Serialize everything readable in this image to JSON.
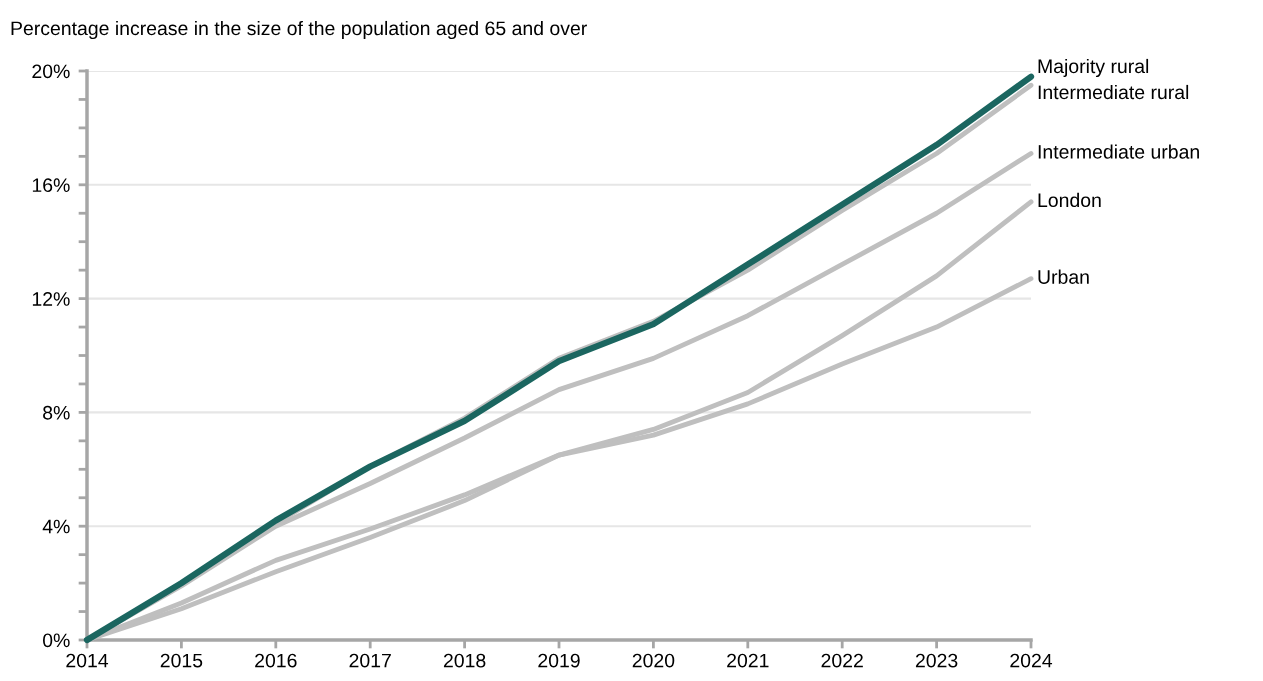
{
  "chart_data": {
    "type": "line",
    "title": "Percentage increase in the size of the population aged 65 and over",
    "x": [
      2014,
      2015,
      2016,
      2017,
      2018,
      2019,
      2020,
      2021,
      2022,
      2023,
      2024
    ],
    "series": [
      {
        "name": "Intermediate rural",
        "color": "#bfbfbf",
        "values": [
          0,
          2.0,
          4.1,
          6.1,
          7.8,
          9.9,
          11.2,
          13.0,
          15.1,
          17.1,
          19.5
        ]
      },
      {
        "name": "Intermediate urban",
        "color": "#bfbfbf",
        "values": [
          0,
          1.9,
          4.0,
          5.5,
          7.1,
          8.8,
          9.9,
          11.4,
          13.2,
          15.0,
          17.1
        ]
      },
      {
        "name": "London",
        "color": "#bfbfbf",
        "values": [
          0,
          1.1,
          2.4,
          3.6,
          4.9,
          6.5,
          7.4,
          8.7,
          10.7,
          12.8,
          15.4
        ]
      },
      {
        "name": "Urban",
        "color": "#bfbfbf",
        "values": [
          0,
          1.3,
          2.8,
          3.9,
          5.1,
          6.5,
          7.2,
          8.3,
          9.7,
          11.0,
          12.7
        ]
      },
      {
        "name": "Majority rural",
        "color": "#1b6660",
        "values": [
          0,
          2.0,
          4.2,
          6.1,
          7.7,
          9.8,
          11.1,
          13.2,
          15.3,
          17.4,
          19.8
        ]
      }
    ],
    "xlim": [
      2014,
      2024
    ],
    "xticks": [
      2014,
      2015,
      2016,
      2017,
      2018,
      2019,
      2020,
      2021,
      2022,
      2023,
      2024
    ],
    "ylim": [
      0,
      20
    ],
    "yticks": [
      {
        "value": 0,
        "label": "0%"
      },
      {
        "value": 1,
        "label": null
      },
      {
        "value": 2,
        "label": null
      },
      {
        "value": 3,
        "label": null
      },
      {
        "value": 4,
        "label": "4%"
      },
      {
        "value": 5,
        "label": null
      },
      {
        "value": 6,
        "label": null
      },
      {
        "value": 7,
        "label": null
      },
      {
        "value": 8,
        "label": "8%"
      },
      {
        "value": 9,
        "label": null
      },
      {
        "value": 10,
        "label": null
      },
      {
        "value": 11,
        "label": null
      },
      {
        "value": 12,
        "label": "12%"
      },
      {
        "value": 13,
        "label": null
      },
      {
        "value": 14,
        "label": null
      },
      {
        "value": 15,
        "label": null
      },
      {
        "value": 16,
        "label": "16%"
      },
      {
        "value": 17,
        "label": null
      },
      {
        "value": 18,
        "label": null
      },
      {
        "value": 19,
        "label": null
      },
      {
        "value": 20,
        "label": "20%"
      }
    ],
    "grid": "y",
    "legend": false,
    "marker": "none",
    "line_style": "solid"
  }
}
